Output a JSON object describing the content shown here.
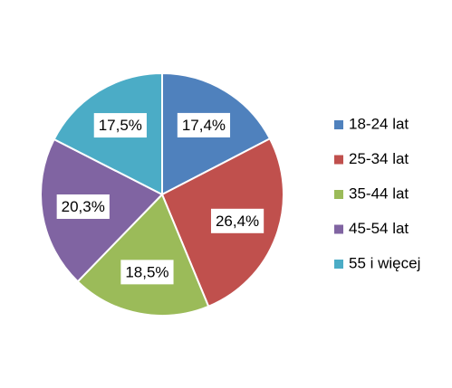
{
  "chart_data": {
    "type": "pie",
    "categories": [
      "18-24 lat",
      "25-34 lat",
      "35-44 lat",
      "45-54 lat",
      "55 i więcej"
    ],
    "values": [
      17.4,
      26.4,
      18.5,
      20.3,
      17.5
    ],
    "value_labels": [
      "17,4%",
      "26,4%",
      "18,5%",
      "20,3%",
      "17,5%"
    ],
    "colors": [
      "#4f81bd",
      "#c0504d",
      "#9bbb59",
      "#8064a2",
      "#4bacc6"
    ],
    "legend": "right"
  }
}
